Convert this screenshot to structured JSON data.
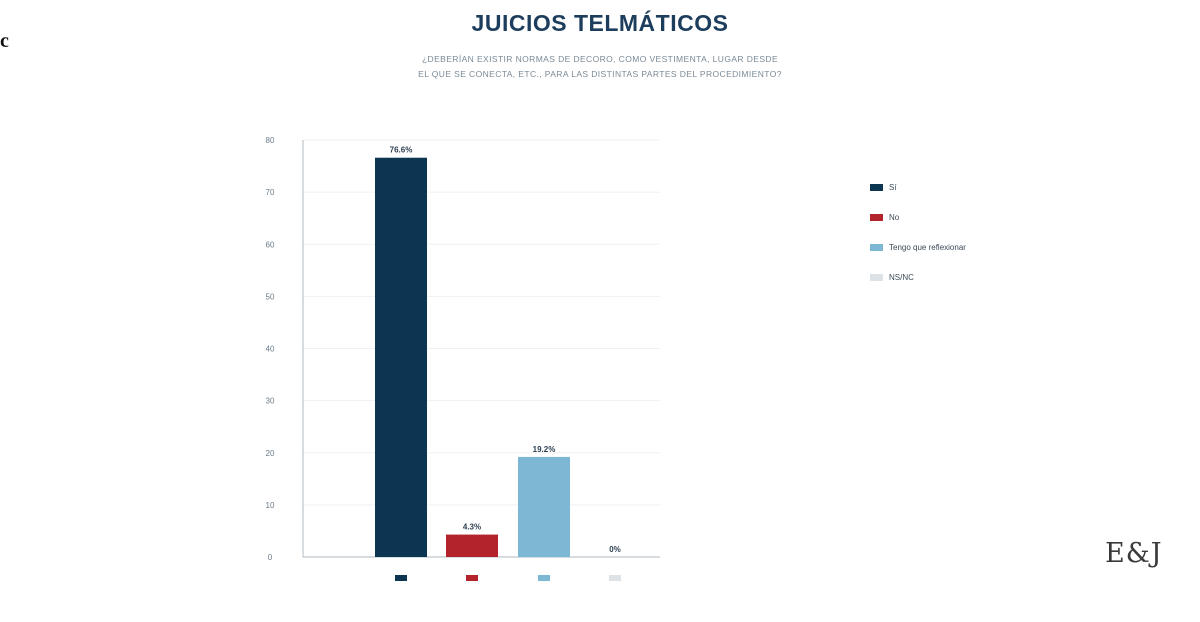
{
  "corner_mark": "c",
  "logo_text": "E&J",
  "chart_data": {
    "type": "bar",
    "title": "JUICIOS TELMÁTICOS",
    "subtitle_lines": [
      "¿DEBERÍAN EXISTIR NORMAS DE DECORO, COMO VESTIMENTA, LUGAR DESDE",
      "EL QUE SE CONECTA, ETC., PARA LAS DISTINTAS PARTES DEL PROCEDIMIENTO?"
    ],
    "categories": [
      "Sí",
      "No",
      "Tengo que reflexionar",
      "NS/NC"
    ],
    "values": [
      76.6,
      4.3,
      19.2,
      0
    ],
    "data_labels": [
      "76.6%",
      "4.3%",
      "19.2%",
      "0%"
    ],
    "yticks": [
      0,
      10,
      20,
      30,
      40,
      50,
      60,
      70,
      80
    ],
    "ylim": [
      0,
      80
    ],
    "grid": true,
    "legend_position": "right",
    "colors": [
      "#0c3552",
      "#b3232b",
      "#7cb8d4",
      "#dde2e6"
    ]
  }
}
